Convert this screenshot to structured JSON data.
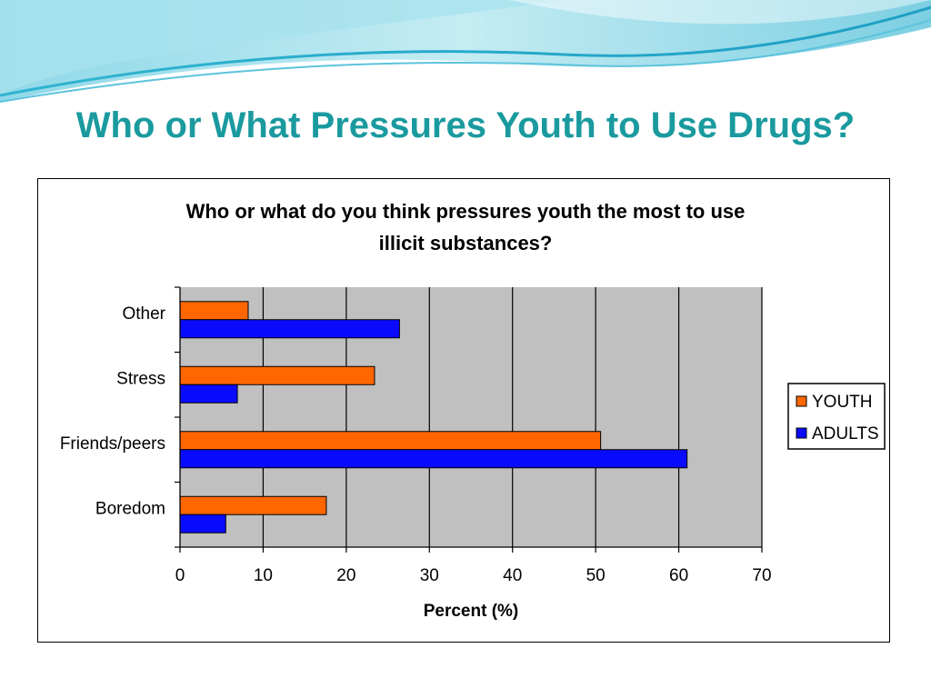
{
  "slide": {
    "title": "Who or What Pressures Youth to Use Drugs?"
  },
  "colors": {
    "title": "#1a9a9f",
    "plot_background": "#c0c0c0",
    "youth": "#ff6600",
    "adults": "#0a0aff"
  },
  "chart_data": {
    "type": "bar",
    "orientation": "horizontal",
    "title_lines": [
      "Who or what do you think pressures youth the most to use",
      "illicit substances?"
    ],
    "categories": [
      "Other",
      "Stress",
      "Friends/peers",
      "Boredom"
    ],
    "series": [
      {
        "name": "YOUTH",
        "color": "#ff6600",
        "values": [
          8.2,
          23.4,
          50.6,
          17.6
        ]
      },
      {
        "name": "ADULTS",
        "color": "#0a0aff",
        "values": [
          26.4,
          6.9,
          61.0,
          5.5
        ]
      }
    ],
    "xlabel": "Percent (%)",
    "ylabel": "",
    "xlim": [
      0,
      70
    ],
    "xticks": [
      0,
      10,
      20,
      30,
      40,
      50,
      60,
      70
    ],
    "grid": "vertical",
    "legend": "right"
  }
}
